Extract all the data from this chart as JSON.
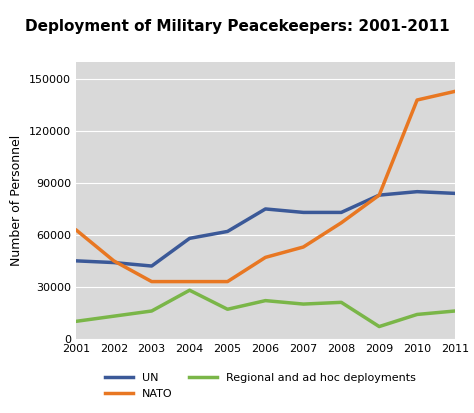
{
  "title": "Deployment of Military Peacekeepers: 2001-2011",
  "title_bold_part": "Deployment of ",
  "title_italic_part": "Military",
  "xlabel": "",
  "ylabel": "Number of Personnel",
  "years": [
    2001,
    2002,
    2003,
    2004,
    2005,
    2006,
    2007,
    2008,
    2009,
    2010,
    2011
  ],
  "UN": [
    45000,
    44000,
    42000,
    58000,
    62000,
    75000,
    73000,
    73000,
    83000,
    85000,
    84000
  ],
  "NATO": [
    63000,
    45000,
    33000,
    33000,
    33000,
    47000,
    53000,
    67000,
    83000,
    138000,
    143000
  ],
  "Regional": [
    10000,
    13000,
    16000,
    28000,
    17000,
    22000,
    20000,
    21000,
    7000,
    14000,
    16000
  ],
  "UN_color": "#3B5998",
  "NATO_color": "#E87722",
  "Regional_color": "#7AB648",
  "background_color": "#D9D9D9",
  "title_bg_color": "#D0DCE8",
  "ylim": [
    0,
    160000
  ],
  "yticks": [
    0,
    30000,
    60000,
    90000,
    120000,
    150000
  ],
  "line_width": 2.5
}
